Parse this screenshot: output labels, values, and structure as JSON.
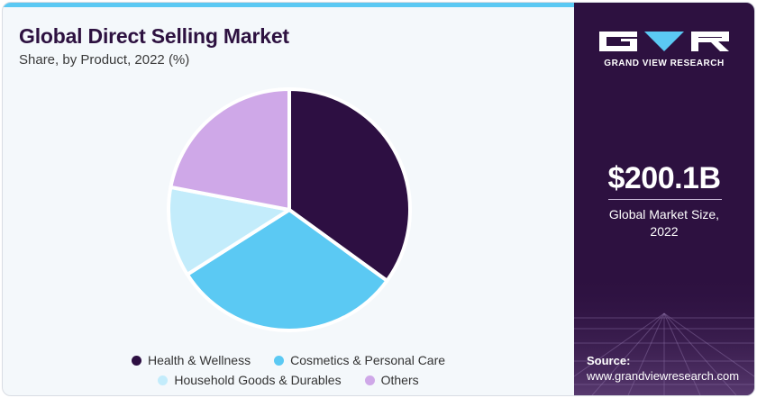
{
  "header": {
    "title": "Global Direct Selling Market",
    "subtitle": "Share, by Product, 2022 (%)"
  },
  "chart_data": {
    "type": "pie",
    "categories": [
      "Health & Wellness",
      "Cosmetics & Personal Care",
      "Household Goods & Durables",
      "Others"
    ],
    "values": [
      35,
      31,
      12,
      22
    ],
    "colors": [
      "#2d0f42",
      "#5bc9f3",
      "#c3ecfb",
      "#cfa8e8"
    ],
    "legend_position": "bottom",
    "start_angle_deg": 0,
    "direction": "clockwise"
  },
  "sidebar": {
    "brand": "GRAND VIEW RESEARCH",
    "market_size": "$200.1B",
    "market_size_caption_line1": "Global Market Size,",
    "market_size_caption_line2": "2022",
    "source_label": "Source:",
    "source_url": "www.grandviewresearch.com",
    "logo_icon": "grand-view-research-logo",
    "accent_color": "#5bc9f3",
    "background_color": "#2d1140"
  }
}
